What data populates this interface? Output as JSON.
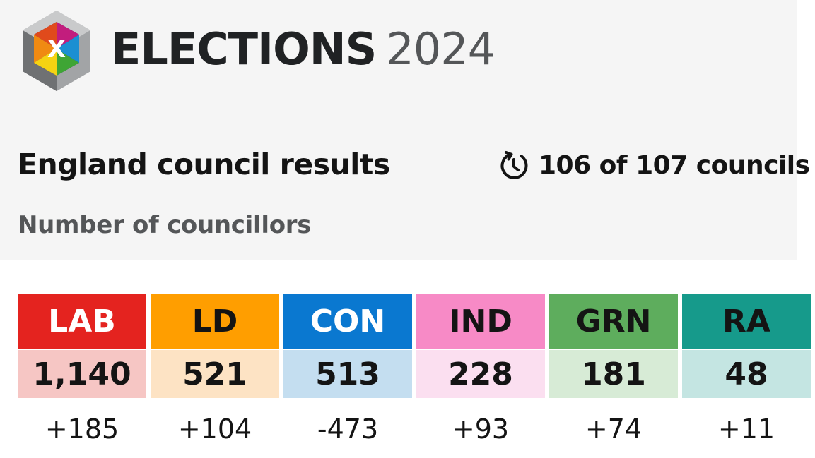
{
  "header": {
    "title_word": "ELECTIONS",
    "title_year": "2024",
    "logo_icon": "ballot-x-cube-icon",
    "logo_letter": "X"
  },
  "section": {
    "title": "England council results",
    "status_icon": "clock-refresh-icon",
    "status_text": "106 of 107 councils",
    "subtitle": "Number of councillors"
  },
  "parties": [
    {
      "code": "LAB",
      "seats": "1,140",
      "change": "+185",
      "color": "#e4231f",
      "label_color": "#ffffff",
      "light_color": "#f6c6c4"
    },
    {
      "code": "LD",
      "seats": "521",
      "change": "+104",
      "color": "#ff9e00",
      "label_color": "#141414",
      "light_color": "#fde3c4"
    },
    {
      "code": "CON",
      "seats": "513",
      "change": "-473",
      "color": "#0a78d0",
      "label_color": "#ffffff",
      "light_color": "#c4def0"
    },
    {
      "code": "IND",
      "seats": "228",
      "change": "+93",
      "color": "#f78ac6",
      "label_color": "#141414",
      "light_color": "#fbdff0"
    },
    {
      "code": "GRN",
      "seats": "181",
      "change": "+74",
      "color": "#5ead5d",
      "label_color": "#141414",
      "light_color": "#d7ebd6"
    },
    {
      "code": "RA",
      "seats": "48",
      "change": "+11",
      "color": "#169a8b",
      "label_color": "#141414",
      "light_color": "#c4e5e2"
    }
  ]
}
